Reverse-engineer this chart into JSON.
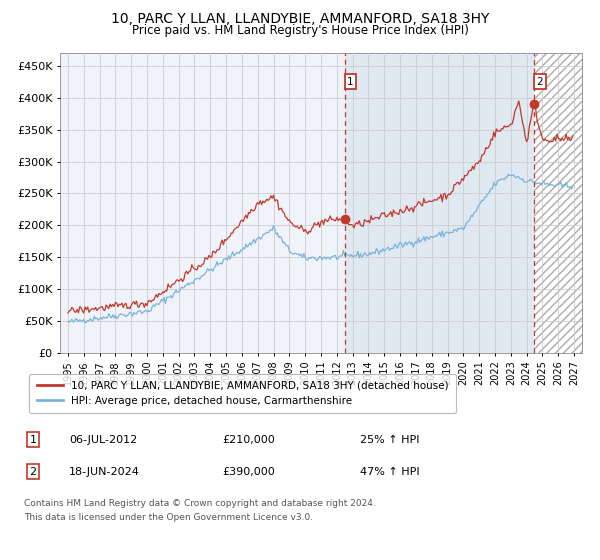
{
  "title": "10, PARC Y LLAN, LLANDYBIE, AMMANFORD, SA18 3HY",
  "subtitle": "Price paid vs. HM Land Registry's House Price Index (HPI)",
  "ylim": [
    0,
    470000
  ],
  "yticks": [
    0,
    50000,
    100000,
    150000,
    200000,
    250000,
    300000,
    350000,
    400000,
    450000
  ],
  "ytick_labels": [
    "£0",
    "£50K",
    "£100K",
    "£150K",
    "£200K",
    "£250K",
    "£300K",
    "£350K",
    "£400K",
    "£450K"
  ],
  "xlim_start": 1994.5,
  "xlim_end": 2027.5,
  "purchase1_date": 2012.51,
  "purchase1_price": 210000,
  "purchase2_date": 2024.46,
  "purchase2_price": 390000,
  "red_line_color": "#c0392b",
  "blue_line_color": "#7ab3d9",
  "shade_color": "#dce6f1",
  "grid_color": "#cccccc",
  "bg_color": "#f0f4fa",
  "legend_line1": "10, PARC Y LLAN, LLANDYBIE, AMMANFORD, SA18 3HY (detached house)",
  "legend_line2": "HPI: Average price, detached house, Carmarthenshire",
  "footnote1": "Contains HM Land Registry data © Crown copyright and database right 2024.",
  "footnote2": "This data is licensed under the Open Government Licence v3.0."
}
